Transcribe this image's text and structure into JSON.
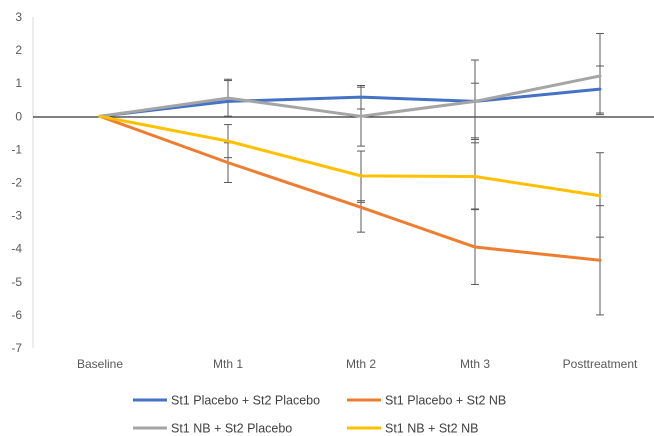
{
  "chart_data": {
    "type": "line",
    "title": "",
    "xlabel": "",
    "ylabel": "",
    "categories": [
      "Baseline",
      "Mth 1",
      "Mth 2",
      "Mth 3",
      "Posttreatment"
    ],
    "ylim": [
      -7,
      3
    ],
    "yticks": [
      3,
      2,
      1,
      0,
      -1,
      -2,
      -3,
      -4,
      -5,
      -6,
      -7
    ],
    "grid": false,
    "legend_position": "bottom",
    "series": [
      {
        "name": "St1 Placebo + St2 Placebo",
        "color": "#4472C4",
        "values": [
          0,
          0.45,
          0.58,
          0.45,
          0.82
        ],
        "error_low": [
          null,
          0.0,
          0.22,
          -0.7,
          0.05
        ],
        "error_high": [
          null,
          1.08,
          0.93,
          1.0,
          1.52
        ]
      },
      {
        "name": "St1 Placebo + St2 NB",
        "color": "#ED7D31",
        "values": [
          0,
          -1.4,
          -2.75,
          -3.95,
          -4.35
        ],
        "error_low": [
          null,
          -2.0,
          -3.5,
          -5.08,
          -6.0
        ],
        "error_high": [
          null,
          -0.8,
          -2.55,
          -2.82,
          -2.7
        ]
      },
      {
        "name": "St1 NB + St2 Placebo",
        "color": "#A5A5A5",
        "values": [
          0,
          0.55,
          0.0,
          0.45,
          1.22
        ],
        "error_low": [
          null,
          0.0,
          -0.9,
          -0.8,
          0.1
        ],
        "error_high": [
          null,
          1.12,
          0.88,
          1.7,
          2.5
        ]
      },
      {
        "name": "St1 NB + St2 NB",
        "color": "#FFC000",
        "values": [
          0,
          -0.75,
          -1.8,
          -1.82,
          -2.4
        ],
        "error_low": [
          null,
          -1.25,
          -2.6,
          -2.8,
          -3.65
        ],
        "error_high": [
          null,
          -0.25,
          -1.05,
          -0.65,
          -1.1
        ]
      }
    ]
  }
}
